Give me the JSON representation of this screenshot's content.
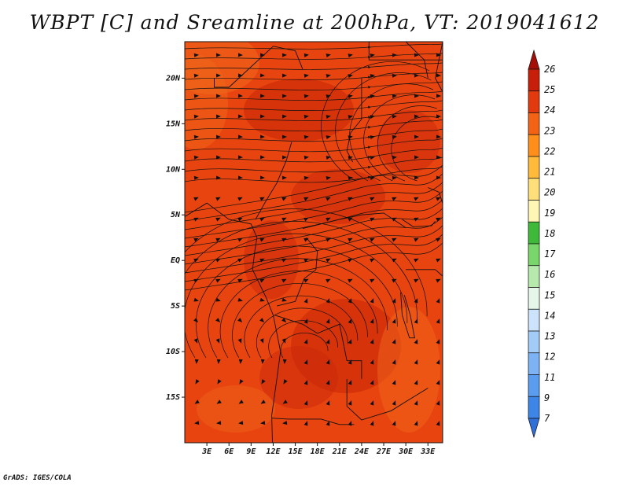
{
  "title": "WBPT [C] and Sreamline at 200hPa, VT: 2019041612",
  "footer": "GrADS: IGES/COLA",
  "map": {
    "lon_range": [
      0,
      35
    ],
    "lat_range": [
      -20,
      24
    ],
    "lon_ticks": [
      "3E",
      "6E",
      "9E",
      "12E",
      "15E",
      "18E",
      "21E",
      "24E",
      "27E",
      "30E",
      "33E"
    ],
    "lat_ticks": [
      "20N",
      "15N",
      "10N",
      "5N",
      "EQ",
      "5S",
      "10S",
      "15S"
    ],
    "field_color_main": "#e8440f",
    "field_color_dark": "#c8260a",
    "field_color_light": "#f0661a"
  },
  "colorbar": {
    "labels": [
      "7",
      "9",
      "11",
      "12",
      "13",
      "14",
      "15",
      "16",
      "17",
      "18",
      "19",
      "20",
      "21",
      "22",
      "23",
      "24",
      "25",
      "26"
    ],
    "colors": [
      "#2f6fd8",
      "#3d85e6",
      "#5a9cf0",
      "#7db2f5",
      "#a3cbf8",
      "#cde3fb",
      "#e6f6e8",
      "#b7e9ad",
      "#79d66a",
      "#3fb93a",
      "#fff5b4",
      "#ffdf7a",
      "#ffba3c",
      "#ff8f1a",
      "#f26316",
      "#e23a0e",
      "#c81f0a",
      "#a50d08"
    ]
  }
}
